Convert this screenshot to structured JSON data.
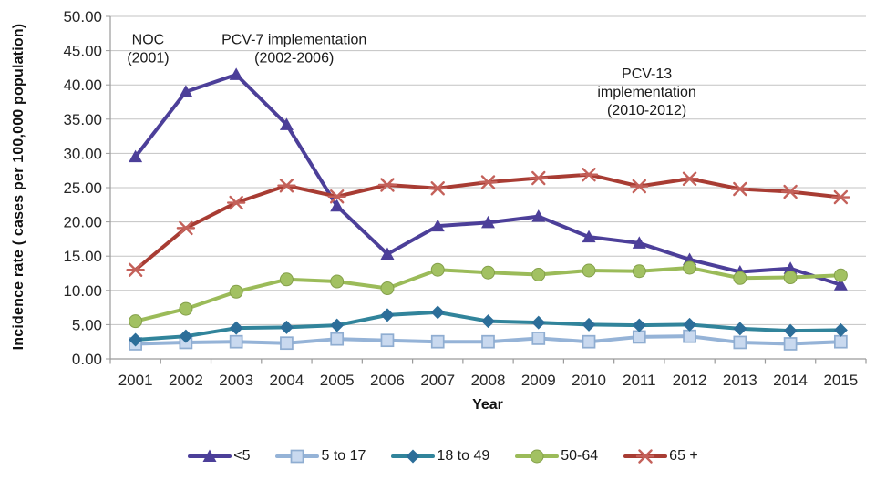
{
  "chart_data": {
    "type": "line",
    "title": "",
    "xlabel": "Year",
    "ylabel": "Incidence rate ( cases per 100,000 population)",
    "categories": [
      "2001",
      "2002",
      "2003",
      "2004",
      "2005",
      "2006",
      "2007",
      "2008",
      "2009",
      "2010",
      "2011",
      "2012",
      "2013",
      "2014",
      "2015"
    ],
    "ylim": [
      0,
      50
    ],
    "ytick_step": 5,
    "yticks": [
      "0.00",
      "5.00",
      "10.00",
      "15.00",
      "20.00",
      "25.00",
      "30.00",
      "35.00",
      "40.00",
      "45.00",
      "50.00"
    ],
    "grid": true,
    "legend_position": "bottom",
    "series": [
      {
        "name": "<5",
        "marker": "triangle",
        "color": "#4c3f99",
        "marker_fill": "#4c3f99",
        "marker_stroke": "#4c3f99",
        "values": [
          29.5,
          39.0,
          41.5,
          34.2,
          22.3,
          15.3,
          19.4,
          19.9,
          20.8,
          17.8,
          16.9,
          14.5,
          12.7,
          13.2,
          10.8
        ]
      },
      {
        "name": "5 to 17",
        "marker": "square",
        "color": "#95b3d7",
        "marker_fill": "#c9d9ef",
        "marker_stroke": "#8fadd1",
        "values": [
          2.2,
          2.4,
          2.5,
          2.3,
          2.9,
          2.7,
          2.5,
          2.5,
          3.0,
          2.5,
          3.2,
          3.3,
          2.4,
          2.2,
          2.5
        ]
      },
      {
        "name": "18 to 49",
        "marker": "diamond",
        "color": "#31849b",
        "marker_fill": "#2c6e99",
        "marker_stroke": "#2c6e99",
        "values": [
          2.8,
          3.3,
          4.5,
          4.6,
          4.9,
          6.4,
          6.8,
          5.5,
          5.3,
          5.0,
          4.9,
          5.0,
          4.4,
          4.1,
          4.2
        ]
      },
      {
        "name": "50-64",
        "marker": "circle",
        "color": "#9bbb59",
        "marker_fill": "#a2c162",
        "marker_stroke": "#84a04a",
        "values": [
          5.5,
          7.3,
          9.8,
          11.6,
          11.3,
          10.3,
          13.0,
          12.6,
          12.3,
          12.9,
          12.8,
          13.3,
          11.8,
          11.9,
          12.2
        ]
      },
      {
        "name": "65 +",
        "marker": "asterisk",
        "color": "#a83c33",
        "marker_fill": "#c4615a",
        "marker_stroke": "#c4615a",
        "values": [
          13.0,
          19.1,
          22.8,
          25.3,
          23.7,
          25.4,
          24.9,
          25.8,
          26.4,
          26.9,
          25.2,
          26.3,
          24.8,
          24.4,
          23.6
        ]
      }
    ],
    "annotations": [
      {
        "lines": [
          "NOC",
          "(2001)"
        ],
        "anchor_year": 2001.25,
        "anchor_value": 46.6
      },
      {
        "lines": [
          "PCV-7 implementation",
          "(2002-2006)"
        ],
        "anchor_year": 2004.15,
        "anchor_value": 46.6
      },
      {
        "lines": [
          "PCV-13",
          "implementation",
          "(2010-2012)"
        ],
        "anchor_year": 2011.15,
        "anchor_value": 41.6
      }
    ],
    "style": {
      "grid_color": "#c3c3c3",
      "axis_color": "#9a9a9a",
      "tick_label_color": "#262626",
      "annotation_color": "#1a1a1a"
    }
  }
}
